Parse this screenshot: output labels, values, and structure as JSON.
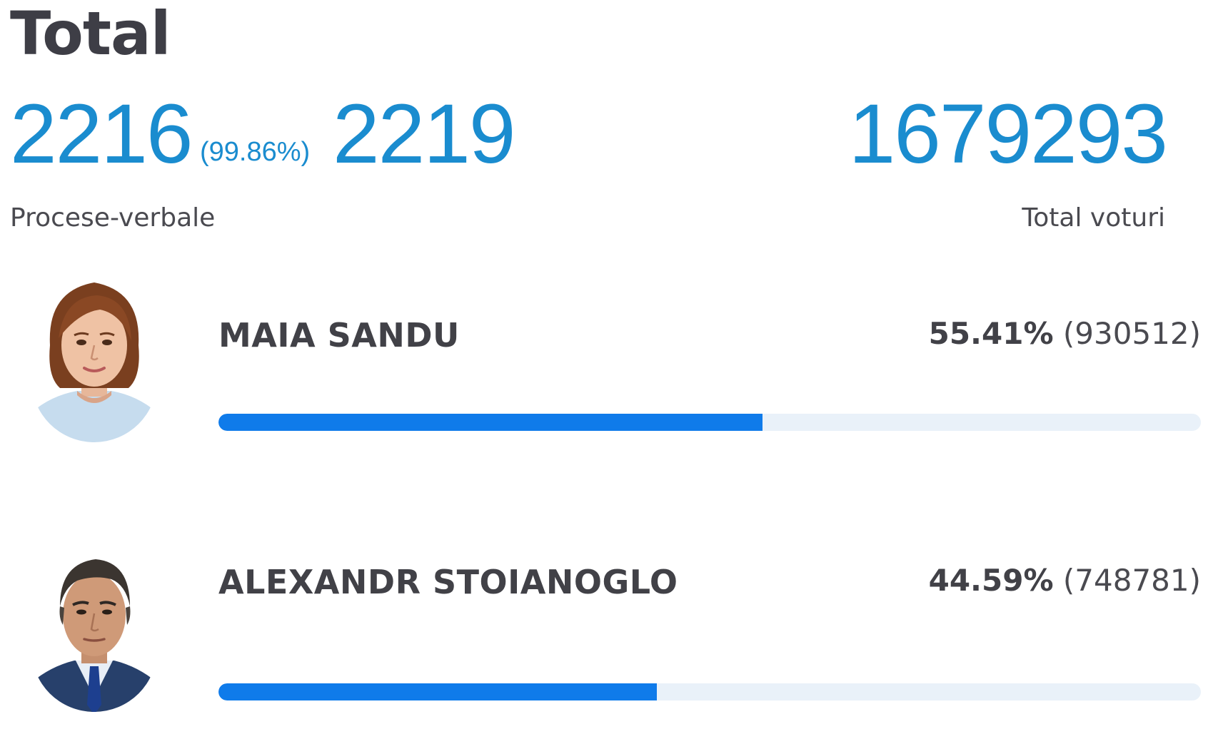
{
  "header": {
    "title": "Total"
  },
  "stats": {
    "processed": "2216",
    "processed_percent": "(99.86%)",
    "total_stations": "2219",
    "stations_label": "Procese-verbale",
    "total_votes": "1679293",
    "votes_label": "Total voturi"
  },
  "colors": {
    "accent": "#1a8ccf",
    "bar_fill": "#0f7bea",
    "bar_track": "#e9f1f9",
    "text_dark": "#3e3e46"
  },
  "candidates": [
    {
      "name": "MAIA SANDU",
      "percent": "55.41%",
      "votes": "(930512)",
      "share": 0.5541,
      "avatar_icon": "woman-portrait-icon"
    },
    {
      "name": "ALEXANDR STOIANOGLO",
      "percent": "44.59%",
      "votes": "(748781)",
      "share": 0.4459,
      "avatar_icon": "man-portrait-icon"
    }
  ]
}
